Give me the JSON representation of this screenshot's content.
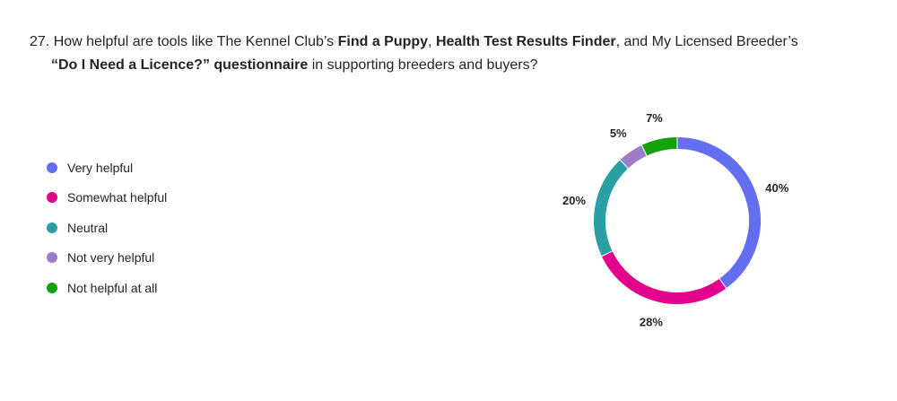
{
  "question": {
    "number": "27.",
    "part1": " How helpful are tools like The Kennel Club’s ",
    "bold1": "Find a Puppy",
    "part2": ", ",
    "bold2": "Health Test Results Finder",
    "part3": ", and My Licensed Breeder’s",
    "bold3": "“Do I Need a Licence?” questionnaire",
    "part4": " in supporting breeders and buyers?"
  },
  "chart_data": {
    "type": "pie",
    "style": "donut",
    "legend_position": "left",
    "categories": [
      "Very helpful",
      "Somewhat helpful",
      "Neutral",
      "Not very helpful",
      "Not helpful at all"
    ],
    "values": [
      40,
      28,
      20,
      5,
      7
    ],
    "labels": [
      "40%",
      "28%",
      "20%",
      "5%",
      "7%"
    ],
    "colors": [
      "#636EF0",
      "#E3008C",
      "#2AA0A4",
      "#9F7CC8",
      "#13A10E"
    ]
  }
}
